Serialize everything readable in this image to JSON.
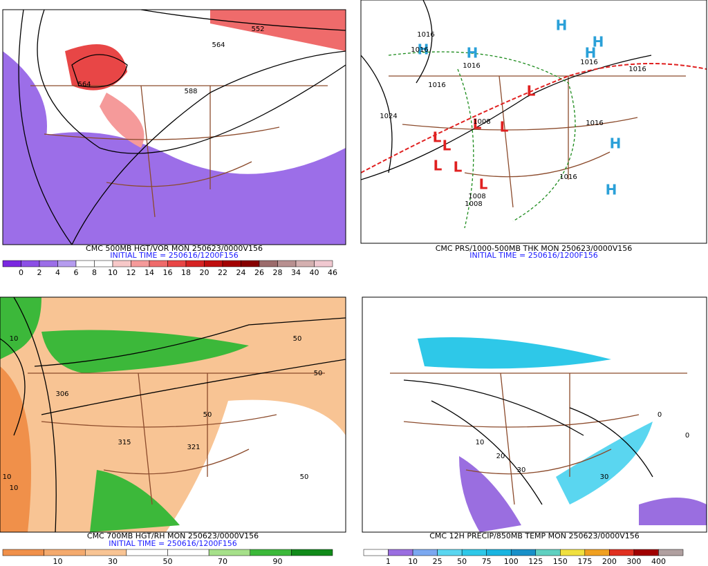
{
  "panels": [
    {
      "title": "CMC 500MB HGT/VOR MON 250623/0000V156",
      "initial_time": "INITIAL TIME = 250616/1200F156",
      "colorbar": {
        "colors": [
          "#7a28e0",
          "#8c4fe6",
          "#9c6ee8",
          "#b59cef",
          "#ffffff",
          "#ffffff",
          "#f7c8c8",
          "#f59a9a",
          "#ef6b6b",
          "#e84646",
          "#d62323",
          "#bf0e0e",
          "#a30000",
          "#860000",
          "#9c6b6b",
          "#b89090",
          "#d4b0b0",
          "#f0c8d0"
        ],
        "labels": [
          "0",
          "2",
          "4",
          "6",
          "8",
          "10",
          "12",
          "14",
          "16",
          "18",
          "20",
          "22",
          "24",
          "26",
          "28",
          "34",
          "40",
          "46"
        ]
      },
      "map_labels": [
        "552",
        "564",
        "564",
        "588"
      ]
    },
    {
      "title": "CMC PRS/1000-500MB THK MON 250623/0000V156",
      "initial_time": "INITIAL TIME = 250616/1200F156",
      "map_labels": [
        "1016",
        "1016",
        "1016",
        "1016",
        "1024",
        "1016",
        "1016",
        "1008",
        "1008",
        "1008",
        "1016",
        "1016"
      ],
      "highs": [
        "H",
        "H",
        "H",
        "H",
        "H",
        "H",
        "H"
      ],
      "lows": [
        "L",
        "L",
        "L",
        "L",
        "L",
        "L",
        "L",
        "L"
      ]
    },
    {
      "title": "CMC 700MB HGT/RH MON 250623/0000V156",
      "initial_time": "INITIAL TIME = 250616/1200F156",
      "colorbar": {
        "colors": [
          "#f0904a",
          "#f4aa6e",
          "#f8c494",
          "#ffffff",
          "#ffffff",
          "#a6e08a",
          "#3cb83a",
          "#118a1a"
        ],
        "labels": [
          "10",
          "30",
          "50",
          "70",
          "90"
        ]
      },
      "map_labels": [
        "10",
        "10",
        "10",
        "50",
        "50",
        "50",
        "315",
        "321",
        "306",
        "50"
      ]
    },
    {
      "title": "CMC 12H PRECIP/850MB TEMP MON 250623/0000V156",
      "colorbar": {
        "colors": [
          "#ffffff",
          "#9a6ee0",
          "#7ba8f0",
          "#5ad6f0",
          "#2ec8e8",
          "#19b4e0",
          "#1890c8",
          "#5fd0c0",
          "#f0e040",
          "#f0a020",
          "#e03020",
          "#a00000",
          "#b0a0a0"
        ],
        "labels": [
          "1",
          "10",
          "25",
          "50",
          "75",
          "100",
          "125",
          "150",
          "175",
          "200",
          "300",
          "400"
        ]
      },
      "map_labels": [
        "0",
        "0",
        "10",
        "20",
        "30",
        "30"
      ]
    }
  ]
}
